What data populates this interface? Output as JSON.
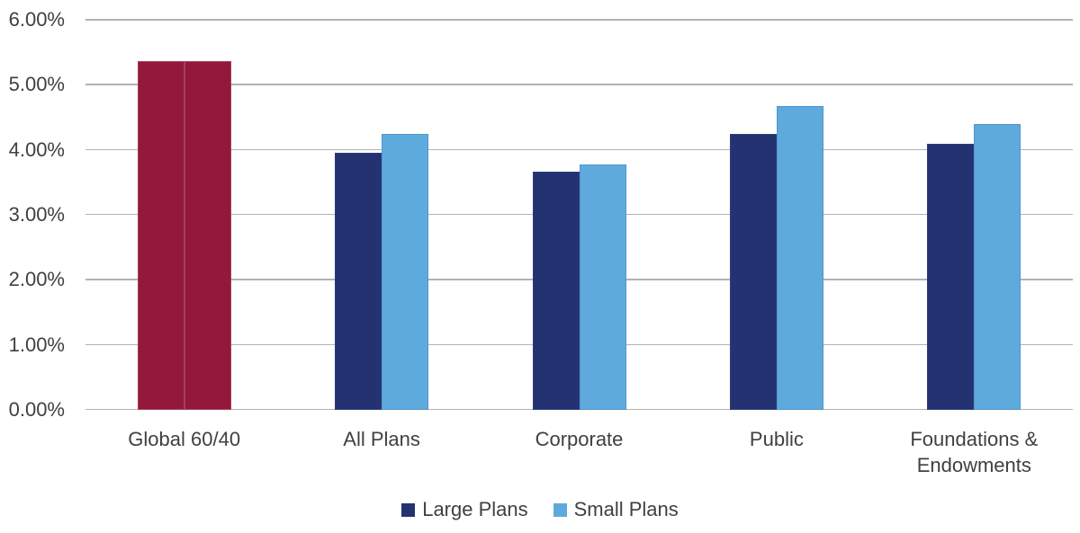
{
  "chart_data": {
    "type": "bar",
    "categories": [
      "Global 60/40",
      "All Plans",
      "Corporate",
      "Public",
      "Foundations & Endowments"
    ],
    "series": [
      {
        "name": "Large Plans",
        "color": "#243271",
        "border_color": "#2e3c80",
        "values": [
          5.36,
          3.95,
          3.67,
          4.24,
          4.09
        ]
      },
      {
        "name": "Small Plans",
        "color": "#5faadc",
        "border_color": "#4e97ce",
        "values": [
          5.36,
          4.24,
          3.77,
          4.67,
          4.39
        ]
      }
    ],
    "highlight": {
      "category": "Global 60/40",
      "category_index": 0,
      "color": "#92183c",
      "border_color": "#a64059",
      "note": "both series bars shown in highlight color for this category"
    },
    "y_axis": {
      "min": 0,
      "max": 6,
      "step": 1,
      "tick_labels": [
        "0.00%",
        "1.00%",
        "2.00%",
        "3.00%",
        "4.00%",
        "5.00%",
        "6.00%"
      ],
      "unit": "%"
    },
    "grid": true,
    "gridline_color": "#b2b2b2",
    "legend_position": "bottom",
    "legend": [
      "Large Plans",
      "Small Plans"
    ],
    "text_color": "#404040",
    "background_color": "#ffffff"
  }
}
